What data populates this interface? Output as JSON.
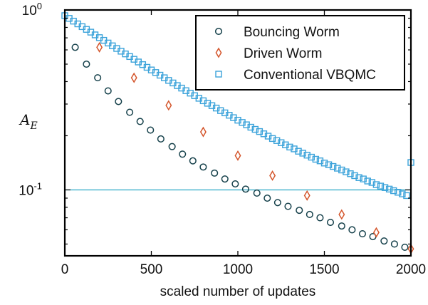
{
  "chart_data": {
    "type": "scatter",
    "xlabel": "scaled number of updates",
    "ylabel": "A",
    "ylabel_subscript": "E",
    "xlim": [
      0,
      2000
    ],
    "ylim": [
      0.043,
      1.0
    ],
    "yscale": "log",
    "xticks": [
      0,
      500,
      1000,
      1500,
      2000
    ],
    "xtick_labels": [
      "0",
      "500",
      "1000",
      "1500",
      "2000"
    ],
    "yticks": [
      1.0,
      0.1
    ],
    "ytick_labels": [
      {
        "base": "10",
        "exp": "0"
      },
      {
        "base": "10",
        "exp": "-1"
      }
    ],
    "grid": false,
    "legend_position": "top-right",
    "reference_line": {
      "y": 0.1,
      "color": "#2aa9c7"
    },
    "series": [
      {
        "name": "Bouncing Worm",
        "marker": "circle",
        "color": "#16414b",
        "x": [
          60,
          125,
          190,
          250,
          310,
          375,
          435,
          495,
          555,
          620,
          680,
          740,
          800,
          865,
          925,
          985,
          1045,
          1110,
          1170,
          1230,
          1290,
          1355,
          1415,
          1475,
          1535,
          1600,
          1660,
          1720,
          1780,
          1845,
          1905,
          1965
        ],
        "y": [
          0.62,
          0.5,
          0.42,
          0.355,
          0.31,
          0.27,
          0.24,
          0.215,
          0.192,
          0.174,
          0.158,
          0.145,
          0.134,
          0.124,
          0.115,
          0.108,
          0.101,
          0.096,
          0.09,
          0.085,
          0.081,
          0.077,
          0.073,
          0.07,
          0.066,
          0.063,
          0.06,
          0.057,
          0.055,
          0.052,
          0.05,
          0.048
        ]
      },
      {
        "name": "Driven Worm",
        "marker": "diamond",
        "color": "#d4552b",
        "x": [
          200,
          400,
          600,
          800,
          1000,
          1200,
          1400,
          1600,
          1800,
          2000
        ],
        "y": [
          0.62,
          0.42,
          0.295,
          0.21,
          0.155,
          0.12,
          0.093,
          0.073,
          0.058,
          0.047
        ]
      },
      {
        "name": "Conventional VBQMC",
        "marker": "square",
        "color": "#3ca3da",
        "x": [
          0,
          25,
          50,
          75,
          100,
          125,
          150,
          175,
          200,
          225,
          250,
          275,
          300,
          325,
          350,
          375,
          400,
          425,
          450,
          475,
          500,
          525,
          550,
          575,
          600,
          625,
          650,
          675,
          700,
          725,
          750,
          775,
          800,
          825,
          850,
          875,
          900,
          925,
          950,
          975,
          1000,
          1025,
          1050,
          1075,
          1100,
          1125,
          1150,
          1175,
          1200,
          1225,
          1250,
          1275,
          1300,
          1325,
          1350,
          1375,
          1400,
          1425,
          1450,
          1475,
          1500,
          1525,
          1550,
          1575,
          1600,
          1625,
          1650,
          1675,
          1700,
          1725,
          1750,
          1775,
          1800,
          1825,
          1850,
          1875,
          1900,
          1925,
          1950,
          1975,
          2000
        ],
        "y": [
          0.93,
          0.898,
          0.867,
          0.837,
          0.808,
          0.78,
          0.753,
          0.727,
          0.702,
          0.678,
          0.655,
          0.632,
          0.611,
          0.59,
          0.57,
          0.551,
          0.532,
          0.514,
          0.497,
          0.48,
          0.464,
          0.449,
          0.434,
          0.42,
          0.406,
          0.393,
          0.38,
          0.368,
          0.356,
          0.345,
          0.334,
          0.323,
          0.313,
          0.303,
          0.294,
          0.285,
          0.276,
          0.268,
          0.26,
          0.252,
          0.244,
          0.237,
          0.23,
          0.223,
          0.217,
          0.211,
          0.205,
          0.199,
          0.193,
          0.188,
          0.183,
          0.178,
          0.173,
          0.169,
          0.164,
          0.16,
          0.156,
          0.152,
          0.148,
          0.145,
          0.141,
          0.138,
          0.135,
          0.132,
          0.129,
          0.126,
          0.123,
          0.12,
          0.117,
          0.115,
          0.112,
          0.11,
          0.107,
          0.105,
          0.103,
          0.101,
          0.099,
          0.097,
          0.095,
          0.093,
          0.142
        ]
      }
    ]
  }
}
